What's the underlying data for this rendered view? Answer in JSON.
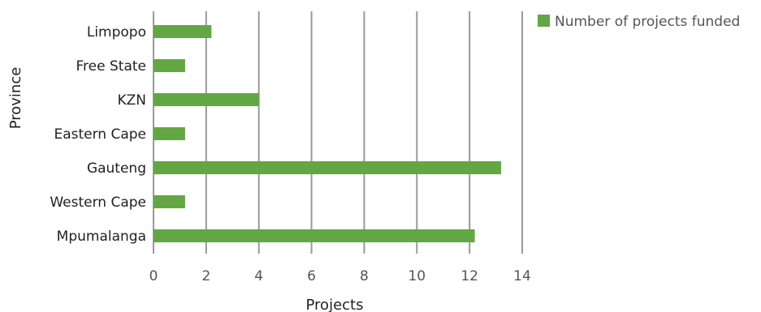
{
  "chart_data": {
    "type": "bar",
    "orientation": "horizontal",
    "categories": [
      "Limpopo",
      "Free State",
      "KZN",
      "Eastern Cape",
      "Gauteng",
      "Western Cape",
      "Mpumalanga"
    ],
    "series": [
      {
        "name": "Number of projects funded",
        "values": [
          2.2,
          1.2,
          4,
          1.2,
          13.2,
          1.2,
          12.2
        ]
      }
    ],
    "xlabel": "Projects",
    "ylabel": "Province",
    "xlim": [
      0,
      14
    ],
    "xticks": [
      "0",
      "2",
      "4",
      "6",
      "8",
      "10",
      "12",
      "14"
    ],
    "grid": "vertical",
    "legend": "top-right",
    "colors": {
      "bar": "#62a744",
      "grid": "#999999"
    }
  }
}
